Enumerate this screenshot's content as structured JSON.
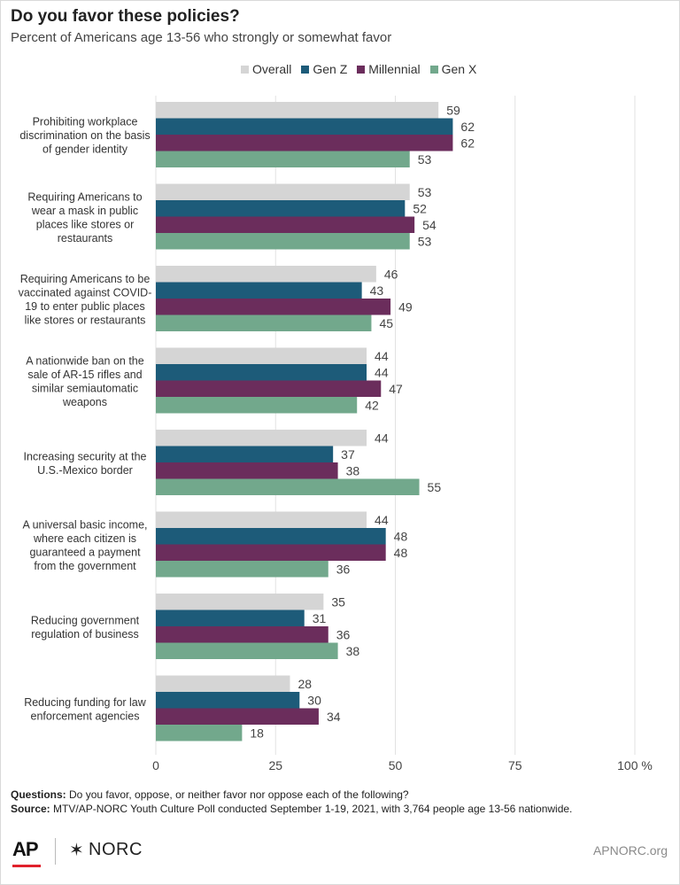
{
  "title": "Do you favor these policies?",
  "subtitle": "Percent of Americans age 13-56 who strongly or somewhat favor",
  "chart_data": {
    "type": "bar",
    "orientation": "horizontal",
    "categories": [
      [
        "Prohibiting workplace",
        "discrimination on the basis",
        "of gender identity"
      ],
      [
        "Requiring Americans to",
        "wear a mask in public",
        "places like stores or",
        "restaurants"
      ],
      [
        "Requiring Americans to be",
        "vaccinated against COVID-",
        "19 to enter public places",
        "like stores or restaurants"
      ],
      [
        "A nationwide ban on the",
        "sale of AR-15 rifles and",
        "similar semiautomatic",
        "weapons"
      ],
      [
        "Increasing security at the",
        "U.S.-Mexico border"
      ],
      [
        "A universal basic income,",
        "where each citizen is",
        "guaranteed a payment",
        "from the government"
      ],
      [
        "Reducing government",
        "regulation of business"
      ],
      [
        "Reducing funding for law",
        "enforcement agencies"
      ]
    ],
    "series": [
      {
        "name": "Overall",
        "color": "#d5d5d5",
        "values": [
          59,
          53,
          46,
          44,
          44,
          44,
          35,
          28
        ]
      },
      {
        "name": "Gen Z",
        "color": "#1d5b79",
        "values": [
          62,
          52,
          43,
          44,
          37,
          48,
          31,
          30
        ]
      },
      {
        "name": "Millennial",
        "color": "#6b2d5c",
        "values": [
          62,
          54,
          49,
          47,
          38,
          48,
          36,
          34
        ]
      },
      {
        "name": "Gen X",
        "color": "#72a88c",
        "values": [
          53,
          53,
          45,
          42,
          55,
          36,
          38,
          18
        ]
      }
    ],
    "x_ticks": [
      "0",
      "25",
      "50",
      "75",
      "100 %"
    ],
    "x_tick_values": [
      0,
      25,
      50,
      75,
      100
    ],
    "xlim": [
      0,
      100
    ],
    "grid": true,
    "legend_position": "top-right"
  },
  "footnotes": {
    "questions_label": "Questions:",
    "questions_text": "Do you favor, oppose, or neither favor nor oppose each of the following?",
    "source_label": "Source:",
    "source_text": "MTV/AP-NORC Youth Culture Poll conducted September 1-19, 2021, with 3,764 people age 13-56 nationwide."
  },
  "footer": {
    "ap_logo": "AP",
    "norc_star": "✶",
    "norc_logo": "NORC",
    "site": "APNORC.org"
  }
}
